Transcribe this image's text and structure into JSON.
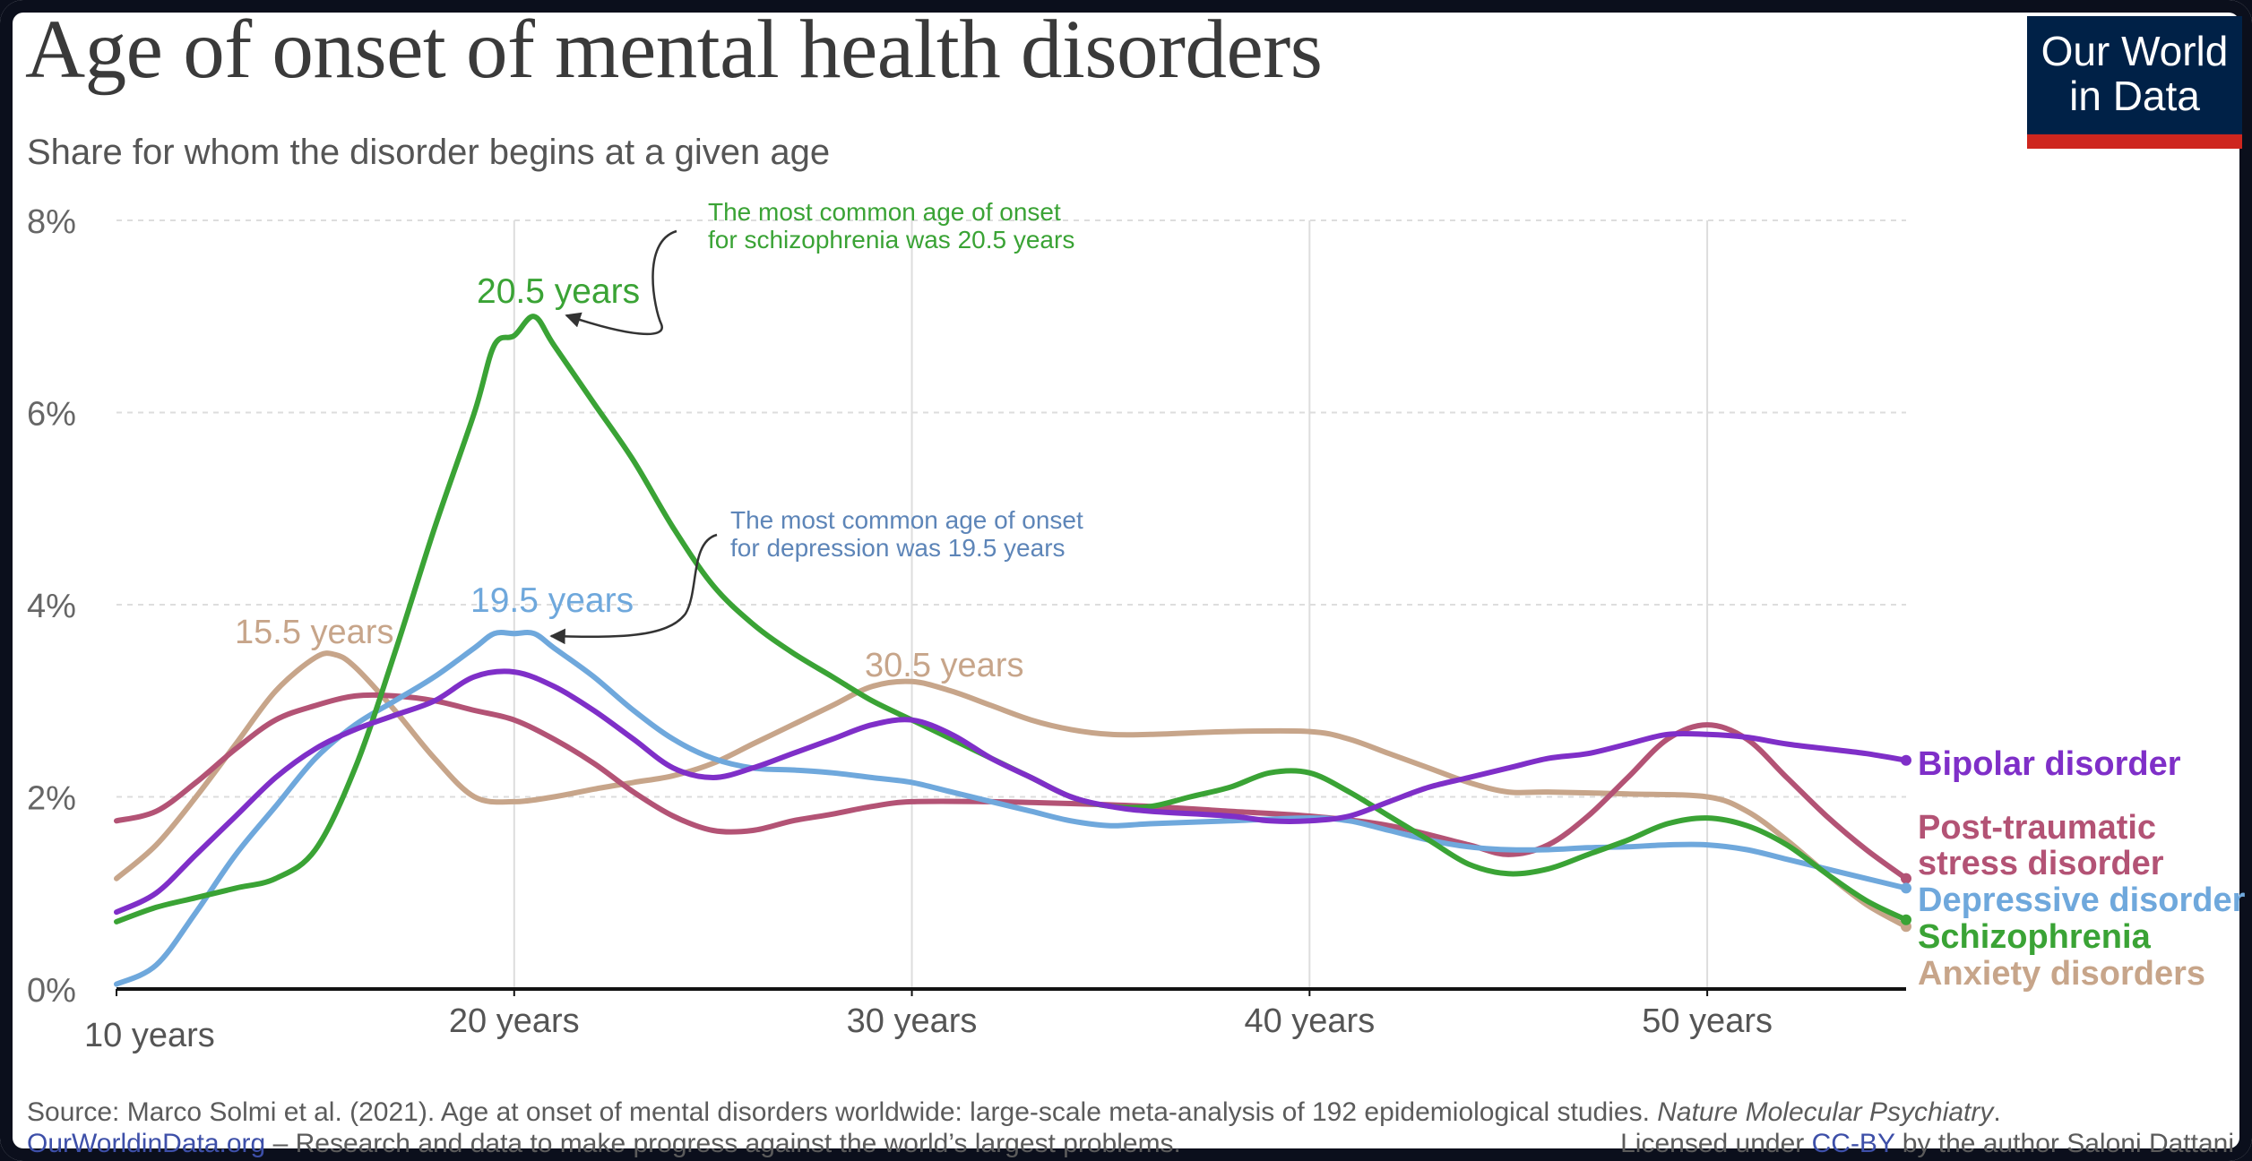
{
  "header": {
    "title": "Age of onset of mental health disorders",
    "subtitle": "Share for whom the disorder begins at a given age",
    "logo_line1": "Our World",
    "logo_line2": "in Data"
  },
  "footer": {
    "source_prefix": "Source: Marco Solmi et al. (2021). Age at onset of mental disorders worldwide: large-scale meta-analysis of 192 epidemiological studies. ",
    "source_journal": "Nature Molecular Psychiatry",
    "source_suffix": ".",
    "site_link": "OurWorldinData.org",
    "tagline": " – Research and data to make progress against the world’s largest problems.",
    "license_prefix": "Licensed under ",
    "license_link": "CC-BY",
    "license_suffix": " by the author Saloni Dattani"
  },
  "colors": {
    "bipolar": "#7f2fc8",
    "ptsd": "#b35375",
    "depressive": "#6fa8dc",
    "schizophrenia": "#3aa335",
    "anxiety": "#c7a58a",
    "schizo_annotation": "#3aa335",
    "depression_annotation": "#5d85b8",
    "logo_bg": "#002147",
    "logo_bar": "#ce261e"
  },
  "chart_data": {
    "type": "line",
    "title": "Age of onset of mental health disorders",
    "subtitle": "Share for whom the disorder begins at a given age",
    "xlabel": "",
    "ylabel": "",
    "xlim": [
      10,
      55
    ],
    "ylim": [
      0,
      8
    ],
    "x_ticks": [
      {
        "value": 10,
        "label": "10 years"
      },
      {
        "value": 20,
        "label": "20 years"
      },
      {
        "value": 30,
        "label": "30 years"
      },
      {
        "value": 40,
        "label": "40 years"
      },
      {
        "value": 50,
        "label": "50 years"
      }
    ],
    "y_ticks": [
      {
        "value": 0,
        "label": "0%"
      },
      {
        "value": 2,
        "label": "2%"
      },
      {
        "value": 4,
        "label": "4%"
      },
      {
        "value": 6,
        "label": "6%"
      },
      {
        "value": 8,
        "label": "8%"
      }
    ],
    "grid": true,
    "legend": "right-end labels",
    "series": [
      {
        "name": "Bipolar disorder",
        "label_lines": [
          "Bipolar disorder"
        ],
        "color_key": "bipolar",
        "points": [
          [
            10,
            0.8
          ],
          [
            11,
            1.0
          ],
          [
            12,
            1.4
          ],
          [
            13,
            1.8
          ],
          [
            14,
            2.2
          ],
          [
            15,
            2.5
          ],
          [
            16,
            2.7
          ],
          [
            17,
            2.85
          ],
          [
            18,
            3.0
          ],
          [
            19,
            3.25
          ],
          [
            20,
            3.3
          ],
          [
            21,
            3.15
          ],
          [
            22,
            2.9
          ],
          [
            23,
            2.6
          ],
          [
            24,
            2.3
          ],
          [
            25,
            2.2
          ],
          [
            26,
            2.3
          ],
          [
            27,
            2.45
          ],
          [
            28,
            2.6
          ],
          [
            29,
            2.75
          ],
          [
            30,
            2.8
          ],
          [
            31,
            2.65
          ],
          [
            32,
            2.4
          ],
          [
            33,
            2.2
          ],
          [
            34,
            2.0
          ],
          [
            35,
            1.9
          ],
          [
            36,
            1.85
          ],
          [
            38,
            1.8
          ],
          [
            39,
            1.75
          ],
          [
            40,
            1.75
          ],
          [
            41,
            1.8
          ],
          [
            42,
            1.95
          ],
          [
            43,
            2.1
          ],
          [
            44,
            2.2
          ],
          [
            45,
            2.3
          ],
          [
            46,
            2.4
          ],
          [
            47,
            2.45
          ],
          [
            48,
            2.55
          ],
          [
            49,
            2.65
          ],
          [
            50,
            2.65
          ],
          [
            51,
            2.62
          ],
          [
            52,
            2.55
          ],
          [
            53,
            2.5
          ],
          [
            54,
            2.45
          ],
          [
            55,
            2.38
          ]
        ]
      },
      {
        "name": "Post-traumatic stress disorder",
        "label_lines": [
          "Post-traumatic",
          "stress disorder"
        ],
        "color_key": "ptsd",
        "points": [
          [
            10,
            1.75
          ],
          [
            11,
            1.85
          ],
          [
            12,
            2.15
          ],
          [
            13,
            2.5
          ],
          [
            14,
            2.8
          ],
          [
            15,
            2.95
          ],
          [
            16,
            3.05
          ],
          [
            17,
            3.05
          ],
          [
            18,
            3.0
          ],
          [
            19,
            2.9
          ],
          [
            20,
            2.8
          ],
          [
            21,
            2.6
          ],
          [
            22,
            2.35
          ],
          [
            23,
            2.05
          ],
          [
            24,
            1.8
          ],
          [
            25,
            1.65
          ],
          [
            26,
            1.65
          ],
          [
            27,
            1.75
          ],
          [
            28,
            1.82
          ],
          [
            29,
            1.9
          ],
          [
            30,
            1.95
          ],
          [
            32,
            1.95
          ],
          [
            34,
            1.93
          ],
          [
            36,
            1.9
          ],
          [
            38,
            1.85
          ],
          [
            40,
            1.8
          ],
          [
            42,
            1.7
          ],
          [
            44,
            1.5
          ],
          [
            45,
            1.4
          ],
          [
            46,
            1.5
          ],
          [
            47,
            1.8
          ],
          [
            48,
            2.2
          ],
          [
            49,
            2.6
          ],
          [
            50,
            2.75
          ],
          [
            51,
            2.6
          ],
          [
            52,
            2.2
          ],
          [
            53,
            1.8
          ],
          [
            54,
            1.45
          ],
          [
            55,
            1.15
          ]
        ]
      },
      {
        "name": "Depressive disorder",
        "label_lines": [
          "Depressive disorder"
        ],
        "color_key": "depressive",
        "points": [
          [
            10,
            0.05
          ],
          [
            11,
            0.25
          ],
          [
            12,
            0.8
          ],
          [
            13,
            1.4
          ],
          [
            14,
            1.9
          ],
          [
            15,
            2.4
          ],
          [
            16,
            2.75
          ],
          [
            17,
            3.0
          ],
          [
            18,
            3.25
          ],
          [
            19,
            3.55
          ],
          [
            19.5,
            3.7
          ],
          [
            20,
            3.7
          ],
          [
            20.5,
            3.7
          ],
          [
            21,
            3.55
          ],
          [
            22,
            3.25
          ],
          [
            23,
            2.9
          ],
          [
            24,
            2.6
          ],
          [
            25,
            2.4
          ],
          [
            26,
            2.3
          ],
          [
            27,
            2.28
          ],
          [
            28,
            2.25
          ],
          [
            29,
            2.2
          ],
          [
            30,
            2.15
          ],
          [
            31,
            2.05
          ],
          [
            32,
            1.95
          ],
          [
            33,
            1.85
          ],
          [
            34,
            1.75
          ],
          [
            35,
            1.7
          ],
          [
            36,
            1.72
          ],
          [
            38,
            1.75
          ],
          [
            40,
            1.78
          ],
          [
            41,
            1.75
          ],
          [
            42,
            1.65
          ],
          [
            43,
            1.55
          ],
          [
            44,
            1.48
          ],
          [
            45,
            1.45
          ],
          [
            46,
            1.45
          ],
          [
            47,
            1.47
          ],
          [
            48,
            1.48
          ],
          [
            49,
            1.5
          ],
          [
            50,
            1.5
          ],
          [
            51,
            1.45
          ],
          [
            52,
            1.35
          ],
          [
            53,
            1.25
          ],
          [
            54,
            1.15
          ],
          [
            55,
            1.05
          ]
        ]
      },
      {
        "name": "Schizophrenia",
        "label_lines": [
          "Schizophrenia"
        ],
        "color_key": "schizophrenia",
        "points": [
          [
            10,
            0.7
          ],
          [
            11,
            0.85
          ],
          [
            12,
            0.95
          ],
          [
            13,
            1.05
          ],
          [
            14,
            1.15
          ],
          [
            15,
            1.45
          ],
          [
            16,
            2.3
          ],
          [
            17,
            3.5
          ],
          [
            18,
            4.8
          ],
          [
            19,
            6.0
          ],
          [
            19.5,
            6.7
          ],
          [
            20,
            6.8
          ],
          [
            20.5,
            7.0
          ],
          [
            21,
            6.7
          ],
          [
            22,
            6.1
          ],
          [
            23,
            5.5
          ],
          [
            24,
            4.8
          ],
          [
            25,
            4.2
          ],
          [
            26,
            3.8
          ],
          [
            27,
            3.5
          ],
          [
            28,
            3.25
          ],
          [
            29,
            3.0
          ],
          [
            30,
            2.8
          ],
          [
            31,
            2.6
          ],
          [
            32,
            2.4
          ],
          [
            33,
            2.2
          ],
          [
            34,
            2.0
          ],
          [
            35,
            1.9
          ],
          [
            36,
            1.9
          ],
          [
            37,
            2.0
          ],
          [
            38,
            2.1
          ],
          [
            39,
            2.25
          ],
          [
            40,
            2.25
          ],
          [
            41,
            2.05
          ],
          [
            42,
            1.8
          ],
          [
            43,
            1.55
          ],
          [
            44,
            1.3
          ],
          [
            45,
            1.2
          ],
          [
            46,
            1.25
          ],
          [
            47,
            1.4
          ],
          [
            48,
            1.55
          ],
          [
            49,
            1.72
          ],
          [
            50,
            1.78
          ],
          [
            51,
            1.7
          ],
          [
            52,
            1.5
          ],
          [
            53,
            1.2
          ],
          [
            54,
            0.92
          ],
          [
            55,
            0.72
          ]
        ]
      },
      {
        "name": "Anxiety disorders",
        "label_lines": [
          "Anxiety disorders"
        ],
        "color_key": "anxiety",
        "points": [
          [
            10,
            1.15
          ],
          [
            11,
            1.5
          ],
          [
            12,
            2.0
          ],
          [
            13,
            2.55
          ],
          [
            14,
            3.1
          ],
          [
            15,
            3.45
          ],
          [
            15.5,
            3.48
          ],
          [
            16,
            3.35
          ],
          [
            17,
            2.9
          ],
          [
            18,
            2.4
          ],
          [
            19,
            2.0
          ],
          [
            20,
            1.95
          ],
          [
            21,
            2.0
          ],
          [
            22,
            2.08
          ],
          [
            23,
            2.15
          ],
          [
            24,
            2.22
          ],
          [
            25,
            2.35
          ],
          [
            26,
            2.55
          ],
          [
            27,
            2.75
          ],
          [
            28,
            2.95
          ],
          [
            29,
            3.15
          ],
          [
            30,
            3.2
          ],
          [
            31,
            3.1
          ],
          [
            32,
            2.95
          ],
          [
            33,
            2.8
          ],
          [
            34,
            2.7
          ],
          [
            35,
            2.65
          ],
          [
            36,
            2.65
          ],
          [
            38,
            2.68
          ],
          [
            40,
            2.68
          ],
          [
            41,
            2.6
          ],
          [
            42,
            2.45
          ],
          [
            43,
            2.3
          ],
          [
            44,
            2.15
          ],
          [
            45,
            2.05
          ],
          [
            46,
            2.05
          ],
          [
            48,
            2.03
          ],
          [
            50,
            2.0
          ],
          [
            51,
            1.85
          ],
          [
            52,
            1.55
          ],
          [
            53,
            1.2
          ],
          [
            54,
            0.88
          ],
          [
            55,
            0.65
          ]
        ]
      }
    ],
    "annotations": [
      {
        "text": "20.5 years",
        "x": 20.5,
        "y": 7.0,
        "color_key": "schizophrenia"
      },
      {
        "text": "19.5 years",
        "x": 19.5,
        "y": 3.7,
        "color_key": "depressive"
      },
      {
        "text": "15.5 years",
        "x": 15.5,
        "y": 3.48,
        "color_key": "anxiety"
      },
      {
        "text": "30.5 years",
        "x": 30.5,
        "y": 3.2,
        "color_key": "anxiety"
      },
      {
        "text_lines": [
          "The most common age of onset",
          "for schizophrenia was 20.5 years"
        ],
        "x": 20.5,
        "y": 7.0,
        "color_key": "schizo_annotation"
      },
      {
        "text_lines": [
          "The most common age of onset",
          "for depression was 19.5 years"
        ],
        "x": 19.5,
        "y": 3.7,
        "color_key": "depression_annotation"
      }
    ]
  }
}
